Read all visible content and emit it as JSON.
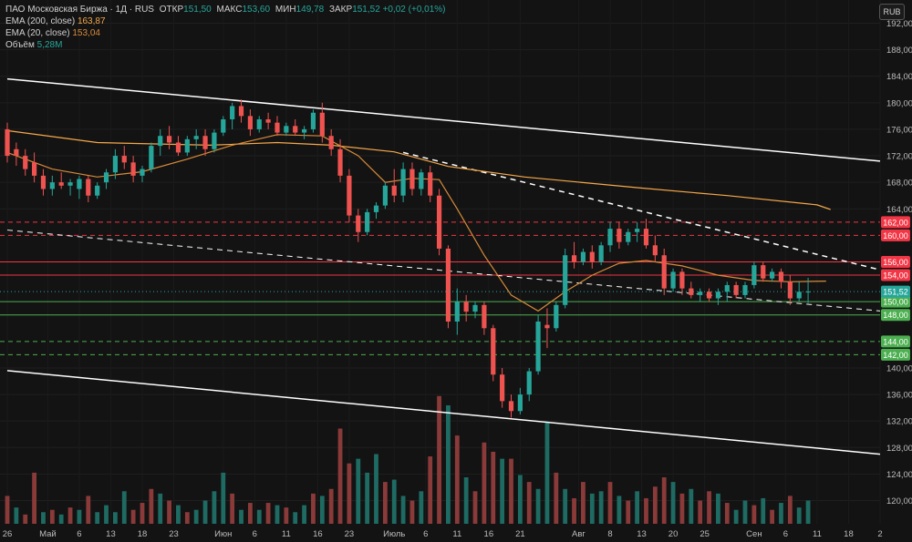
{
  "legend": {
    "symbol": "ПАО Московская Биржа · 1Д · RUS",
    "open_key": "ОТКР",
    "open": "151,50",
    "high_key": "МАКС",
    "high": "153,60",
    "low_key": "МИН",
    "low": "149,78",
    "close_key": "ЗАКР",
    "close": "151,52",
    "change": "+0,02 (+0,01%)",
    "ema200_label": "EMA (200, close)",
    "ema200_value": "163,87",
    "ema20_label": "EMA (20, close)",
    "ema20_value": "153,04",
    "volume_label": "Объём",
    "volume_value": "5,28M"
  },
  "currency": "RUB",
  "colors": {
    "up": "#26a69a",
    "down": "#ef5350",
    "ema200": "#f5a84a",
    "ema20": "#d98b3a",
    "resistance": "#f23645",
    "support": "#4caf50",
    "trend": "#ffffff"
  },
  "chart_data": {
    "type": "candlestick",
    "y_ticks": [
      192,
      188,
      184,
      180,
      176,
      172,
      168,
      164,
      140,
      136,
      132,
      128,
      124,
      120
    ],
    "y_tick_labels": [
      "192,00",
      "188,00",
      "184,00",
      "180,00",
      "176,00",
      "172,00",
      "168,00",
      "164,00",
      "140,00",
      "136,00",
      "132,00",
      "128,00",
      "124,00",
      "120,00"
    ],
    "ylim": [
      116.5,
      195.5
    ],
    "x_tick_labels": [
      "26",
      "Май",
      "6",
      "13",
      "18",
      "23",
      "Июн",
      "6",
      "11",
      "16",
      "23",
      "Июль",
      "6",
      "11",
      "16",
      "21",
      "Авг",
      "8",
      "13",
      "20",
      "25",
      "Сен",
      "6",
      "11",
      "18",
      "2"
    ],
    "x_tick_index": [
      0,
      9,
      16,
      23,
      30,
      37,
      48,
      55,
      62,
      69,
      76,
      86,
      93,
      100,
      107,
      114,
      127,
      134,
      141,
      148,
      155,
      166,
      173,
      180,
      187,
      194
    ],
    "n_slots": 194,
    "horizontal_levels": [
      {
        "price": 162,
        "label": "162,00",
        "color": "#f23645",
        "style": "dashed"
      },
      {
        "price": 160,
        "label": "160,00",
        "color": "#f23645",
        "style": "dashed"
      },
      {
        "price": 156,
        "label": "156,00",
        "color": "#f23645",
        "style": "solid"
      },
      {
        "price": 154,
        "label": "154,00",
        "color": "#f23645",
        "style": "solid"
      },
      {
        "price": 150,
        "label": "150,00",
        "color": "#4caf50",
        "style": "solid"
      },
      {
        "price": 148,
        "label": "148,00",
        "color": "#4caf50",
        "style": "solid"
      },
      {
        "price": 144,
        "label": "144,00",
        "color": "#4caf50",
        "style": "dashed"
      },
      {
        "price": 142,
        "label": "142,00",
        "color": "#4caf50",
        "style": "dashed"
      }
    ],
    "last_price": {
      "price": 151.52,
      "label": "151,52"
    },
    "trendlines": [
      {
        "from": [
          0,
          183.6
        ],
        "to": [
          194,
          171.2
        ],
        "style": "solid",
        "width": 1.5
      },
      {
        "from": [
          0,
          139.6
        ],
        "to": [
          194,
          127.0
        ],
        "style": "solid",
        "width": 1.5
      },
      {
        "from": [
          88,
          172.5
        ],
        "to": [
          194,
          154.8
        ],
        "style": "dashed",
        "width": 1.5
      },
      {
        "from": [
          0,
          160.8
        ],
        "to": [
          194,
          148.6
        ],
        "style": "dashed",
        "width": 1
      }
    ],
    "ema200": [
      [
        0,
        175.8
      ],
      [
        20,
        174.0
      ],
      [
        45,
        173.6
      ],
      [
        60,
        174.0
      ],
      [
        72,
        173.6
      ],
      [
        86,
        172.6
      ],
      [
        98,
        170.4
      ],
      [
        115,
        168.8
      ],
      [
        140,
        167.2
      ],
      [
        160,
        166.0
      ],
      [
        180,
        164.6
      ],
      [
        183,
        163.9
      ]
    ],
    "ema20": [
      [
        0,
        172.5
      ],
      [
        10,
        170.0
      ],
      [
        20,
        168.8
      ],
      [
        30,
        169.6
      ],
      [
        40,
        171.5
      ],
      [
        50,
        173.6
      ],
      [
        60,
        175.2
      ],
      [
        70,
        175.0
      ],
      [
        78,
        172.0
      ],
      [
        84,
        168.0
      ],
      [
        90,
        168.6
      ],
      [
        96,
        168.4
      ],
      [
        100,
        164.0
      ],
      [
        106,
        157.0
      ],
      [
        112,
        151.0
      ],
      [
        118,
        148.6
      ],
      [
        124,
        151.5
      ],
      [
        130,
        154.0
      ],
      [
        136,
        155.8
      ],
      [
        142,
        156.2
      ],
      [
        150,
        155.4
      ],
      [
        158,
        154.0
      ],
      [
        166,
        153.2
      ],
      [
        174,
        153.0
      ],
      [
        182,
        153.1
      ]
    ],
    "candles": [
      {
        "i": 0,
        "o": 176,
        "h": 177,
        "l": 171,
        "c": 172
      },
      {
        "i": 2,
        "o": 173,
        "h": 174,
        "l": 170.5,
        "c": 172
      },
      {
        "i": 4,
        "o": 172,
        "h": 173,
        "l": 169,
        "c": 170
      },
      {
        "i": 6,
        "o": 171,
        "h": 172.5,
        "l": 168,
        "c": 169
      },
      {
        "i": 8,
        "o": 169,
        "h": 170,
        "l": 166,
        "c": 167
      },
      {
        "i": 10,
        "o": 167,
        "h": 169,
        "l": 166,
        "c": 168
      },
      {
        "i": 12,
        "o": 168,
        "h": 169.5,
        "l": 167,
        "c": 167.5
      },
      {
        "i": 14,
        "o": 167.5,
        "h": 168.5,
        "l": 166,
        "c": 168
      },
      {
        "i": 16,
        "o": 167,
        "h": 169,
        "l": 165.5,
        "c": 168.5
      },
      {
        "i": 18,
        "o": 168.5,
        "h": 169,
        "l": 165,
        "c": 166
      },
      {
        "i": 20,
        "o": 166,
        "h": 168,
        "l": 165.5,
        "c": 167.5
      },
      {
        "i": 22,
        "o": 168,
        "h": 170,
        "l": 167,
        "c": 169.5
      },
      {
        "i": 24,
        "o": 169.5,
        "h": 173,
        "l": 168.5,
        "c": 172
      },
      {
        "i": 26,
        "o": 172,
        "h": 173.5,
        "l": 170,
        "c": 171
      },
      {
        "i": 28,
        "o": 171,
        "h": 172,
        "l": 168,
        "c": 169
      },
      {
        "i": 30,
        "o": 169,
        "h": 170.5,
        "l": 168,
        "c": 170
      },
      {
        "i": 32,
        "o": 170,
        "h": 174,
        "l": 169.5,
        "c": 173.5
      },
      {
        "i": 34,
        "o": 173.5,
        "h": 176,
        "l": 172,
        "c": 175
      },
      {
        "i": 36,
        "o": 175,
        "h": 176.5,
        "l": 173,
        "c": 174
      },
      {
        "i": 38,
        "o": 174,
        "h": 175,
        "l": 172,
        "c": 172.5
      },
      {
        "i": 40,
        "o": 172.5,
        "h": 175,
        "l": 172,
        "c": 174.5
      },
      {
        "i": 42,
        "o": 174.5,
        "h": 176,
        "l": 173,
        "c": 175
      },
      {
        "i": 44,
        "o": 175,
        "h": 176,
        "l": 172,
        "c": 173
      },
      {
        "i": 46,
        "o": 173,
        "h": 176,
        "l": 172.5,
        "c": 175.5
      },
      {
        "i": 48,
        "o": 175.5,
        "h": 178,
        "l": 175,
        "c": 177.5
      },
      {
        "i": 50,
        "o": 177.5,
        "h": 180,
        "l": 176,
        "c": 179.5
      },
      {
        "i": 52,
        "o": 179.5,
        "h": 180.5,
        "l": 177,
        "c": 178
      },
      {
        "i": 54,
        "o": 178,
        "h": 179,
        "l": 175,
        "c": 176
      },
      {
        "i": 56,
        "o": 176,
        "h": 178,
        "l": 175.5,
        "c": 177.5
      },
      {
        "i": 58,
        "o": 177.5,
        "h": 178.5,
        "l": 176,
        "c": 177
      },
      {
        "i": 60,
        "o": 177,
        "h": 178,
        "l": 175,
        "c": 175.5
      },
      {
        "i": 62,
        "o": 175.5,
        "h": 177,
        "l": 175,
        "c": 176.5
      },
      {
        "i": 64,
        "o": 176.5,
        "h": 177.5,
        "l": 175,
        "c": 175.5
      },
      {
        "i": 66,
        "o": 175.5,
        "h": 176.5,
        "l": 174.5,
        "c": 176
      },
      {
        "i": 68,
        "o": 176,
        "h": 179,
        "l": 175.5,
        "c": 178.5
      },
      {
        "i": 70,
        "o": 178.5,
        "h": 180,
        "l": 174,
        "c": 175
      },
      {
        "i": 72,
        "o": 175,
        "h": 176,
        "l": 172,
        "c": 173
      },
      {
        "i": 74,
        "o": 173,
        "h": 174.5,
        "l": 168,
        "c": 169
      },
      {
        "i": 76,
        "o": 169,
        "h": 170,
        "l": 162,
        "c": 163
      },
      {
        "i": 78,
        "o": 163,
        "h": 164,
        "l": 159,
        "c": 160.5
      },
      {
        "i": 80,
        "o": 160.5,
        "h": 164,
        "l": 160,
        "c": 163.5
      },
      {
        "i": 82,
        "o": 163.5,
        "h": 165,
        "l": 162.5,
        "c": 164.5
      },
      {
        "i": 84,
        "o": 164.5,
        "h": 168,
        "l": 164,
        "c": 167.5
      },
      {
        "i": 86,
        "o": 167.5,
        "h": 170,
        "l": 165,
        "c": 166
      },
      {
        "i": 88,
        "o": 166,
        "h": 171,
        "l": 165,
        "c": 170
      },
      {
        "i": 90,
        "o": 170,
        "h": 171,
        "l": 166,
        "c": 167
      },
      {
        "i": 92,
        "o": 167,
        "h": 170,
        "l": 166,
        "c": 169.5
      },
      {
        "i": 94,
        "o": 169.5,
        "h": 170.5,
        "l": 165,
        "c": 166
      },
      {
        "i": 96,
        "o": 166,
        "h": 167,
        "l": 157,
        "c": 158
      },
      {
        "i": 98,
        "o": 158,
        "h": 158.5,
        "l": 146,
        "c": 147
      },
      {
        "i": 100,
        "o": 147,
        "h": 152,
        "l": 145,
        "c": 150
      },
      {
        "i": 102,
        "o": 150,
        "h": 151,
        "l": 147,
        "c": 148.5
      },
      {
        "i": 104,
        "o": 148.5,
        "h": 150,
        "l": 147.5,
        "c": 149.5
      },
      {
        "i": 106,
        "o": 149.5,
        "h": 150,
        "l": 145,
        "c": 146
      },
      {
        "i": 108,
        "o": 146,
        "h": 146.5,
        "l": 138,
        "c": 139
      },
      {
        "i": 110,
        "o": 139,
        "h": 140,
        "l": 134,
        "c": 135
      },
      {
        "i": 112,
        "o": 135,
        "h": 136,
        "l": 132.5,
        "c": 133.5
      },
      {
        "i": 114,
        "o": 133.5,
        "h": 137,
        "l": 133,
        "c": 136
      },
      {
        "i": 116,
        "o": 136,
        "h": 140,
        "l": 135,
        "c": 139.5
      },
      {
        "i": 118,
        "o": 139.5,
        "h": 148,
        "l": 139,
        "c": 147
      },
      {
        "i": 120,
        "o": 146.5,
        "h": 149,
        "l": 143,
        "c": 146
      },
      {
        "i": 122,
        "o": 146,
        "h": 150,
        "l": 145.5,
        "c": 149.5
      },
      {
        "i": 124,
        "o": 149.5,
        "h": 158,
        "l": 149,
        "c": 157
      },
      {
        "i": 126,
        "o": 157,
        "h": 159,
        "l": 155,
        "c": 156
      },
      {
        "i": 128,
        "o": 156,
        "h": 158,
        "l": 155.5,
        "c": 157.5
      },
      {
        "i": 130,
        "o": 157.5,
        "h": 158.5,
        "l": 155,
        "c": 156
      },
      {
        "i": 132,
        "o": 156,
        "h": 159,
        "l": 155.5,
        "c": 158.5
      },
      {
        "i": 134,
        "o": 158.5,
        "h": 162,
        "l": 157.5,
        "c": 161
      },
      {
        "i": 136,
        "o": 161,
        "h": 162,
        "l": 158,
        "c": 159
      },
      {
        "i": 138,
        "o": 159,
        "h": 161,
        "l": 158.5,
        "c": 160.5
      },
      {
        "i": 140,
        "o": 160.5,
        "h": 162,
        "l": 159,
        "c": 161
      },
      {
        "i": 142,
        "o": 161,
        "h": 162.5,
        "l": 158,
        "c": 158.5
      },
      {
        "i": 144,
        "o": 158.5,
        "h": 160,
        "l": 156,
        "c": 157
      },
      {
        "i": 146,
        "o": 157,
        "h": 158,
        "l": 151,
        "c": 152
      },
      {
        "i": 148,
        "o": 152,
        "h": 155,
        "l": 151.5,
        "c": 154.5
      },
      {
        "i": 150,
        "o": 154.5,
        "h": 155,
        "l": 151,
        "c": 152
      },
      {
        "i": 152,
        "o": 152,
        "h": 153,
        "l": 150.5,
        "c": 151
      },
      {
        "i": 154,
        "o": 151,
        "h": 152,
        "l": 150,
        "c": 151.5
      },
      {
        "i": 156,
        "o": 151.5,
        "h": 152,
        "l": 150,
        "c": 150.5
      },
      {
        "i": 158,
        "o": 150.5,
        "h": 152,
        "l": 149.5,
        "c": 151.5
      },
      {
        "i": 160,
        "o": 151.5,
        "h": 153,
        "l": 150,
        "c": 152.5
      },
      {
        "i": 162,
        "o": 152.5,
        "h": 153,
        "l": 150.5,
        "c": 151
      },
      {
        "i": 164,
        "o": 151,
        "h": 153,
        "l": 150.5,
        "c": 152.5
      },
      {
        "i": 166,
        "o": 152.5,
        "h": 156,
        "l": 152,
        "c": 155.5
      },
      {
        "i": 168,
        "o": 155.5,
        "h": 156,
        "l": 153,
        "c": 153.5
      },
      {
        "i": 170,
        "o": 153.5,
        "h": 155,
        "l": 153,
        "c": 154.5
      },
      {
        "i": 172,
        "o": 154.5,
        "h": 155,
        "l": 152,
        "c": 153
      },
      {
        "i": 174,
        "o": 153,
        "h": 154,
        "l": 149.5,
        "c": 150.5
      },
      {
        "i": 176,
        "o": 150.5,
        "h": 153,
        "l": 150,
        "c": 151.5
      },
      {
        "i": 178,
        "o": 151.5,
        "h": 153.6,
        "l": 149.78,
        "c": 151.52
      }
    ],
    "volume": [
      [
        0,
        12,
        "d"
      ],
      [
        2,
        7,
        "u"
      ],
      [
        4,
        4,
        "d"
      ],
      [
        6,
        22,
        "d"
      ],
      [
        8,
        5,
        "u"
      ],
      [
        10,
        6,
        "d"
      ],
      [
        12,
        4,
        "u"
      ],
      [
        14,
        7,
        "d"
      ],
      [
        16,
        6,
        "u"
      ],
      [
        18,
        12,
        "d"
      ],
      [
        20,
        5,
        "u"
      ],
      [
        22,
        8,
        "u"
      ],
      [
        24,
        5,
        "u"
      ],
      [
        26,
        14,
        "u"
      ],
      [
        28,
        6,
        "d"
      ],
      [
        30,
        9,
        "d"
      ],
      [
        32,
        15,
        "d"
      ],
      [
        34,
        13,
        "u"
      ],
      [
        36,
        10,
        "d"
      ],
      [
        38,
        8,
        "u"
      ],
      [
        40,
        5,
        "d"
      ],
      [
        42,
        6,
        "u"
      ],
      [
        44,
        10,
        "u"
      ],
      [
        46,
        14,
        "u"
      ],
      [
        48,
        22,
        "u"
      ],
      [
        50,
        13,
        "d"
      ],
      [
        52,
        6,
        "u"
      ],
      [
        54,
        9,
        "d"
      ],
      [
        56,
        6,
        "u"
      ],
      [
        58,
        9,
        "d"
      ],
      [
        60,
        8,
        "u"
      ],
      [
        62,
        7,
        "d"
      ],
      [
        64,
        5,
        "u"
      ],
      [
        66,
        8,
        "u"
      ],
      [
        68,
        13,
        "d"
      ],
      [
        70,
        12,
        "u"
      ],
      [
        72,
        15,
        "d"
      ],
      [
        74,
        41,
        "d"
      ],
      [
        76,
        26,
        "d"
      ],
      [
        78,
        28,
        "u"
      ],
      [
        80,
        22,
        "u"
      ],
      [
        82,
        30,
        "u"
      ],
      [
        84,
        18,
        "d"
      ],
      [
        86,
        19,
        "u"
      ],
      [
        88,
        12,
        "u"
      ],
      [
        90,
        10,
        "d"
      ],
      [
        92,
        14,
        "u"
      ],
      [
        94,
        29,
        "d"
      ],
      [
        96,
        55,
        "d"
      ],
      [
        98,
        51,
        "u"
      ],
      [
        100,
        38,
        "d"
      ],
      [
        102,
        20,
        "u"
      ],
      [
        104,
        14,
        "d"
      ],
      [
        106,
        35,
        "d"
      ],
      [
        108,
        31,
        "d"
      ],
      [
        110,
        28,
        "u"
      ],
      [
        112,
        28,
        "d"
      ],
      [
        114,
        21,
        "u"
      ],
      [
        116,
        18,
        "d"
      ],
      [
        118,
        15,
        "u"
      ],
      [
        120,
        44,
        "u"
      ],
      [
        122,
        22,
        "d"
      ],
      [
        124,
        15,
        "u"
      ],
      [
        126,
        11,
        "d"
      ],
      [
        128,
        18,
        "d"
      ],
      [
        130,
        13,
        "u"
      ],
      [
        132,
        14,
        "u"
      ],
      [
        134,
        18,
        "d"
      ],
      [
        136,
        12,
        "u"
      ],
      [
        138,
        10,
        "d"
      ],
      [
        140,
        14,
        "u"
      ],
      [
        142,
        11,
        "d"
      ],
      [
        144,
        16,
        "d"
      ],
      [
        146,
        20,
        "d"
      ],
      [
        148,
        18,
        "u"
      ],
      [
        150,
        13,
        "d"
      ],
      [
        152,
        15,
        "u"
      ],
      [
        154,
        10,
        "d"
      ],
      [
        156,
        14,
        "d"
      ],
      [
        158,
        13,
        "u"
      ],
      [
        160,
        9,
        "d"
      ],
      [
        162,
        6,
        "u"
      ],
      [
        164,
        10,
        "u"
      ],
      [
        166,
        8,
        "d"
      ],
      [
        168,
        11,
        "u"
      ],
      [
        170,
        6,
        "d"
      ],
      [
        172,
        9,
        "u"
      ],
      [
        174,
        12,
        "d"
      ],
      [
        176,
        7,
        "u"
      ],
      [
        178,
        10,
        "u"
      ]
    ]
  }
}
